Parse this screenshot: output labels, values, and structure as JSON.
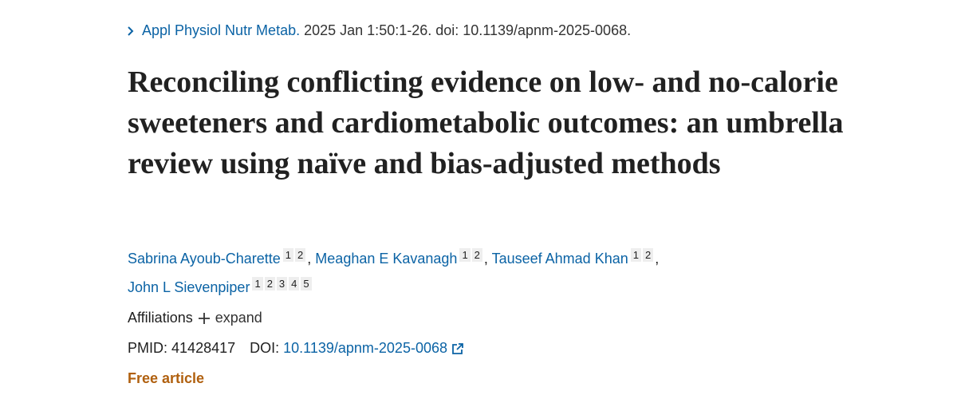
{
  "citation": {
    "journal": "Appl Physiol Nutr Metab.",
    "details": "2025 Jan 1:50:1-26. doi: 10.1139/apnm-2025-0068."
  },
  "title": "Reconciling conflicting evidence on low- and no-calorie sweeteners and cardiometabolic outcomes: an umbrella review using naïve and bias-adjusted methods",
  "authors": [
    {
      "name": "Sabrina Ayoub-Charette",
      "affiliations": [
        1,
        2
      ]
    },
    {
      "name": "Meaghan E Kavanagh",
      "affiliations": [
        1,
        2
      ]
    },
    {
      "name": "Tauseef Ahmad Khan",
      "affiliations": [
        1,
        2
      ]
    },
    {
      "name": "John L Sievenpiper",
      "affiliations": [
        1,
        2,
        3,
        4,
        5
      ]
    }
  ],
  "author_separator": ",",
  "affiliations": {
    "label": "Affiliations",
    "toggle": "expand"
  },
  "identifiers": {
    "pmid_label": "PMID:",
    "pmid": "41428417",
    "doi_label": "DOI:",
    "doi": "10.1139/apnm-2025-0068"
  },
  "access": "Free article"
}
